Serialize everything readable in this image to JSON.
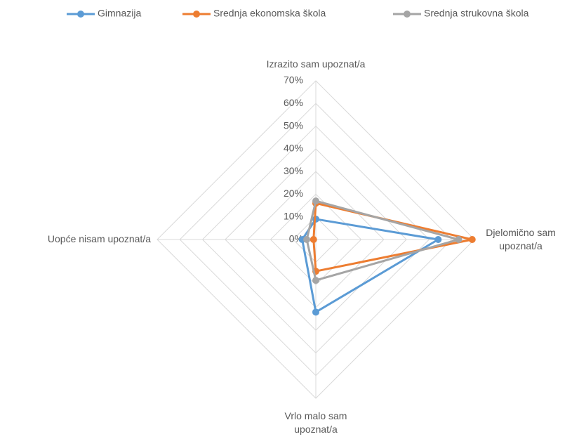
{
  "chart_data": {
    "type": "radar",
    "categories": [
      "Izrazito sam upoznat/a",
      "Djelomično sam upoznat/a",
      "Vrlo malo sam upoznat/a",
      "Uopće nisam upoznat/a"
    ],
    "series": [
      {
        "name": "Gimnazija",
        "color": "#5b9bd5",
        "values": [
          9,
          54,
          32,
          6
        ]
      },
      {
        "name": "Srednja ekonomska škola",
        "color": "#ed7d31",
        "values": [
          16,
          69,
          14,
          1
        ]
      },
      {
        "name": "Srednja strukovna škola",
        "color": "#a5a5a5",
        "values": [
          17,
          63,
          18,
          4
        ]
      }
    ],
    "ylim": [
      0,
      70
    ],
    "yticks": [
      {
        "value": 0,
        "label": "0%"
      },
      {
        "value": 10,
        "label": "10%"
      },
      {
        "value": 20,
        "label": "20%"
      },
      {
        "value": 30,
        "label": "30%"
      },
      {
        "value": 40,
        "label": "40%"
      },
      {
        "value": 50,
        "label": "50%"
      },
      {
        "value": 60,
        "label": "60%"
      },
      {
        "value": 70,
        "label": "70%"
      }
    ],
    "grid": true,
    "legend": "top"
  }
}
